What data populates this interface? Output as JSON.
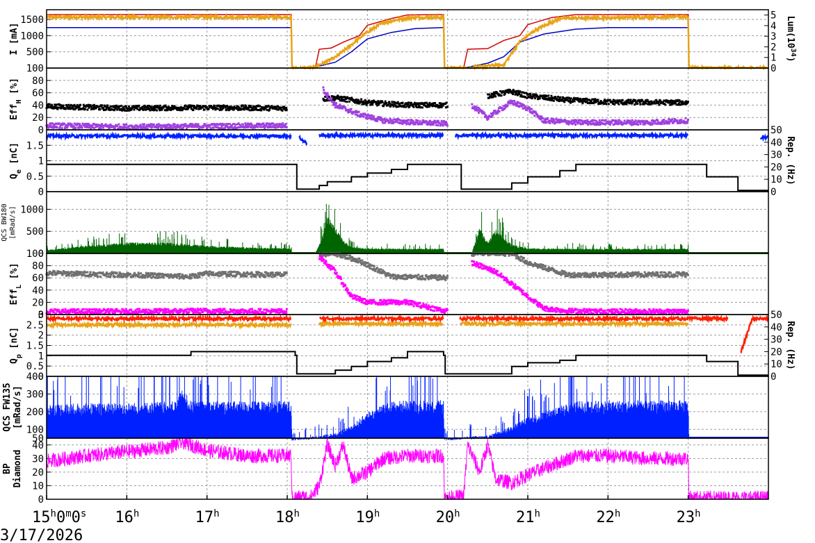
{
  "date": "3/17/2026",
  "colors": {
    "red": "#d40000",
    "orange": "#e8a317",
    "navy": "#0000c0",
    "black": "#000000",
    "purple": "#a040e0",
    "blue": "#0020ff",
    "green": "#006400",
    "gray": "#707070",
    "magenta": "#ff00ff",
    "redorange": "#ff2000",
    "grid": "#9a9a9a"
  },
  "chart_data": [
    {
      "type": "line",
      "ylabel": "I [mA]",
      "ylim": [
        0,
        1800
      ],
      "yticks": [
        "500",
        "1000",
        "1500"
      ],
      "y2label": "Lum(10",
      "y2label_sup": "34",
      "y2label_end": ")",
      "y2lim": [
        0,
        5.5
      ],
      "y2ticks": [
        "0",
        "1",
        "2",
        "3",
        "4",
        "5"
      ],
      "series": [
        {
          "key": "ler",
          "color": "red",
          "x": [
            15.0,
            18.05,
            18.06,
            18.35,
            18.4,
            18.55,
            18.7,
            18.9,
            19.0,
            19.3,
            19.5,
            19.95,
            19.96,
            20.2,
            20.25,
            20.5,
            20.7,
            20.9,
            21.0,
            21.3,
            21.6,
            23.0,
            23.01,
            24.0
          ],
          "y": [
            1650,
            1650,
            0,
            0,
            580,
            620,
            800,
            1000,
            1320,
            1530,
            1640,
            1650,
            0,
            0,
            580,
            600,
            850,
            1000,
            1340,
            1560,
            1650,
            1650,
            0,
            0
          ]
        },
        {
          "key": "her",
          "color": "navy",
          "x": [
            15.0,
            18.05,
            18.06,
            18.3,
            18.6,
            18.8,
            19.0,
            19.3,
            19.6,
            19.95,
            19.96,
            20.2,
            20.5,
            20.7,
            20.9,
            21.2,
            21.6,
            22.0,
            23.0,
            23.01,
            24.0
          ],
          "y": [
            1250,
            1250,
            0,
            0,
            180,
            500,
            900,
            1100,
            1220,
            1250,
            0,
            0,
            150,
            350,
            800,
            1050,
            1200,
            1250,
            1250,
            0,
            0
          ]
        },
        {
          "key": "lum",
          "color": "orange",
          "axis": "y2",
          "noisy": true,
          "x": [
            15.0,
            18.05,
            18.06,
            18.3,
            18.4,
            18.6,
            18.8,
            19.0,
            19.2,
            19.5,
            19.95,
            19.96,
            20.3,
            20.5,
            20.7,
            20.9,
            21.1,
            21.4,
            23.0,
            23.01,
            24.0
          ],
          "y": [
            4.8,
            4.8,
            0,
            0,
            0.3,
            1.0,
            2.2,
            3.4,
            4.3,
            4.75,
            4.8,
            0,
            0,
            0.2,
            0.3,
            2.5,
            3.6,
            4.7,
            4.85,
            0,
            0
          ]
        }
      ]
    },
    {
      "type": "scatter",
      "ylabel": "Eff",
      "ylabel_sub": "H",
      "ylabel_end": " [%]",
      "ylim": [
        0,
        100
      ],
      "yticks": [
        "0",
        "20",
        "40",
        "60",
        "80",
        "100"
      ],
      "series": [
        {
          "key": "effh_black",
          "color": "black",
          "x": [
            15.0,
            16.0,
            17.0,
            18.0,
            18.1,
            18.45,
            18.6,
            19.0,
            19.5,
            20.0,
            20.15,
            20.5,
            20.8,
            21.0,
            21.5,
            22.0,
            23.0
          ],
          "y": [
            38,
            35,
            36,
            35,
            null,
            50,
            52,
            44,
            40,
            40,
            null,
            55,
            62,
            55,
            48,
            45,
            44
          ]
        },
        {
          "key": "effh_purple",
          "color": "purple",
          "x": [
            15.0,
            16.0,
            17.0,
            18.0,
            18.1,
            18.45,
            18.6,
            18.9,
            19.2,
            19.6,
            20.0,
            20.15,
            20.3,
            20.5,
            20.8,
            21.0,
            21.2,
            21.6,
            22.0,
            22.5,
            23.0,
            23.9,
            24.0
          ],
          "y": [
            7,
            5,
            6,
            7,
            null,
            65,
            40,
            25,
            15,
            12,
            10,
            null,
            40,
            20,
            45,
            35,
            15,
            12,
            12,
            12,
            15,
            null,
            3
          ]
        }
      ]
    },
    {
      "type": "line",
      "ylabel": "Q",
      "ylabel_sub": "e",
      "ylabel_end": " [nC]",
      "ylim": [
        0,
        2
      ],
      "yticks": [
        "0",
        "0.5",
        "1",
        "1.5"
      ],
      "y2label": "Rep. (Hz)",
      "y2lim": [
        0,
        50
      ],
      "y2ticks": [
        "0",
        "10",
        "20",
        "30",
        "40",
        "50"
      ],
      "series": [
        {
          "key": "qe",
          "color": "blue",
          "noisy": true,
          "x": [
            15.0,
            18.05,
            18.06,
            18.15,
            18.25,
            18.35,
            18.4,
            19.95,
            19.96,
            20.1,
            20.15,
            23.0,
            23.01,
            23.85,
            23.9,
            24.0
          ],
          "y": [
            1.8,
            1.8,
            null,
            1.75,
            1.55,
            null,
            1.82,
            1.82,
            null,
            1.8,
            1.82,
            1.82,
            null,
            null,
            1.7,
            1.8
          ]
        },
        {
          "key": "rep",
          "color": "black",
          "axis": "y2",
          "step": true,
          "x": [
            15.0,
            18.1,
            18.12,
            18.4,
            18.5,
            18.8,
            19.0,
            19.3,
            19.5,
            20.15,
            20.17,
            20.6,
            20.8,
            21.0,
            21.4,
            21.6,
            23.2,
            23.23,
            23.6,
            23.62,
            24.0
          ],
          "y": [
            22,
            22,
            2,
            5,
            8,
            12,
            15,
            18,
            22,
            22,
            2,
            2,
            7,
            12,
            17,
            22,
            22,
            12,
            12,
            1,
            1
          ]
        }
      ]
    },
    {
      "type": "area",
      "ylabel": "QCS BW180",
      "ylabel2": "[mRad/s]",
      "ylim": [
        0,
        1400
      ],
      "yticks": [
        "0",
        "500",
        "1000"
      ],
      "series": [
        {
          "key": "bw180",
          "color": "green",
          "spiky": true,
          "x": [
            15.0,
            15.5,
            16.0,
            16.5,
            17.0,
            17.5,
            18.0,
            18.05,
            18.06,
            18.35,
            18.45,
            18.5,
            18.6,
            18.7,
            18.8,
            19.0,
            19.5,
            19.95,
            19.96,
            20.3,
            20.4,
            20.5,
            20.6,
            20.8,
            21.0,
            21.5,
            22.0,
            23.0,
            23.01,
            24.0
          ],
          "y": [
            80,
            180,
            250,
            250,
            180,
            140,
            120,
            120,
            0,
            0,
            450,
            900,
            600,
            300,
            150,
            120,
            110,
            110,
            0,
            0,
            600,
            250,
            550,
            200,
            120,
            110,
            110,
            110,
            0,
            0
          ]
        }
      ]
    },
    {
      "type": "scatter",
      "ylabel": "Eff",
      "ylabel_sub": "L",
      "ylabel_end": " [%]",
      "ylim": [
        0,
        100
      ],
      "yticks": [
        "0",
        "20",
        "40",
        "60",
        "80",
        "100"
      ],
      "series": [
        {
          "key": "effl_gray",
          "color": "gray",
          "x": [
            15.0,
            16.0,
            16.8,
            17.0,
            18.0,
            18.1,
            18.4,
            18.6,
            18.9,
            19.3,
            20.0,
            20.15,
            20.3,
            20.8,
            21.0,
            21.5,
            22.0,
            23.0
          ],
          "y": [
            68,
            65,
            62,
            67,
            65,
            null,
            98,
            100,
            88,
            62,
            60,
            null,
            100,
            100,
            85,
            65,
            65,
            66
          ]
        },
        {
          "key": "effl_magenta",
          "color": "magenta",
          "x": [
            15.0,
            16.0,
            17.0,
            18.0,
            18.1,
            18.4,
            18.6,
            18.8,
            19.0,
            19.5,
            20.0,
            20.15,
            20.3,
            20.6,
            20.9,
            21.2,
            21.5,
            22.0,
            23.0
          ],
          "y": [
            5,
            5,
            6,
            5,
            null,
            95,
            70,
            30,
            20,
            20,
            5,
            null,
            85,
            70,
            40,
            10,
            6,
            5,
            5
          ]
        }
      ]
    },
    {
      "type": "line",
      "ylabel": "Q",
      "ylabel_sub": "p",
      "ylabel_end": " [nC]",
      "ylim": [
        0,
        3
      ],
      "yticks": [
        "0",
        "0.5",
        "1",
        "1.5",
        "2",
        "2.5",
        "3"
      ],
      "y2label": "Rep. (Hz)",
      "y2lim": [
        0,
        50
      ],
      "y2ticks": [
        "0",
        "10",
        "20",
        "30",
        "40",
        "50"
      ],
      "series": [
        {
          "key": "qp_orange",
          "color": "orange",
          "noisy": true,
          "x": [
            15.0,
            18.05,
            18.06,
            18.4,
            19.95,
            19.96,
            20.15,
            23.0
          ],
          "y": [
            2.5,
            2.5,
            null,
            2.55,
            2.55,
            null,
            2.55,
            2.55
          ]
        },
        {
          "key": "qp_red",
          "color": "redorange",
          "noisy": true,
          "x": [
            15.0,
            18.05,
            18.06,
            18.2,
            18.35,
            18.4,
            19.95,
            19.96,
            20.15,
            23.0,
            23.2,
            23.5,
            23.6,
            23.65,
            23.8,
            24.0
          ],
          "y": [
            2.8,
            2.8,
            null,
            1.1,
            null,
            2.8,
            2.8,
            null,
            2.8,
            2.8,
            2.8,
            2.8,
            null,
            1.1,
            2.8,
            2.8
          ]
        },
        {
          "key": "rep_p",
          "color": "black",
          "axis": "y2",
          "step": true,
          "x": [
            15.0,
            16.7,
            16.8,
            18.1,
            18.12,
            18.6,
            18.8,
            19.0,
            19.3,
            19.5,
            19.95,
            19.97,
            20.6,
            20.8,
            21.0,
            21.4,
            21.6,
            23.2,
            23.23,
            23.6,
            23.62,
            24.0
          ],
          "y": [
            17,
            17,
            20,
            17,
            2,
            5,
            8,
            12,
            15,
            20,
            17,
            2,
            2,
            8,
            11,
            13,
            17,
            17,
            12,
            12,
            1,
            1
          ]
        }
      ]
    },
    {
      "type": "area",
      "ylabel": "QCS FW135",
      "ylabel2": "[mRad/s]",
      "ylim": [
        50,
        400
      ],
      "yticks": [
        "50",
        "100",
        "200",
        "300",
        "400"
      ],
      "series": [
        {
          "key": "fw135",
          "color": "blue",
          "spiky": true,
          "x": [
            15.0,
            16.0,
            16.6,
            16.7,
            16.8,
            17.0,
            18.0,
            18.05,
            18.06,
            18.3,
            18.6,
            18.8,
            19.0,
            19.3,
            19.5,
            19.95,
            19.96,
            20.2,
            20.5,
            20.8,
            21.0,
            21.3,
            21.6,
            22.0,
            23.0,
            23.01,
            24.0
          ],
          "y": [
            245,
            250,
            260,
            330,
            260,
            260,
            260,
            260,
            50,
            60,
            80,
            120,
            200,
            260,
            265,
            265,
            50,
            60,
            65,
            120,
            170,
            220,
            260,
            265,
            265,
            50,
            50
          ]
        }
      ]
    },
    {
      "type": "line",
      "ylabel": "BP",
      "ylabel2": "Diamond",
      "ylim": [
        0,
        45
      ],
      "yticks": [
        "0",
        "10",
        "20",
        "30",
        "40"
      ],
      "series": [
        {
          "key": "bp",
          "color": "magenta",
          "noisy": true,
          "x": [
            15.0,
            15.5,
            16.0,
            16.5,
            16.7,
            17.0,
            17.5,
            18.0,
            18.05,
            18.06,
            18.3,
            18.4,
            18.5,
            18.6,
            18.7,
            18.8,
            19.0,
            19.2,
            19.5,
            19.95,
            19.96,
            20.2,
            20.25,
            20.4,
            20.5,
            20.6,
            20.8,
            21.0,
            21.3,
            21.6,
            22.0,
            22.5,
            23.0,
            23.01,
            24.0
          ],
          "y": [
            28,
            32,
            35,
            38,
            42,
            36,
            32,
            32,
            32,
            1,
            2,
            10,
            40,
            25,
            40,
            15,
            20,
            30,
            32,
            32,
            1,
            2,
            40,
            20,
            40,
            15,
            12,
            18,
            25,
            32,
            32,
            30,
            30,
            1,
            1
          ]
        }
      ]
    }
  ],
  "x_axis": {
    "xlim": [
      15.0,
      24.0
    ],
    "ticks": [
      {
        "x": 15.0,
        "label": "15",
        "sup1": "h",
        "mid": "0",
        "sup2": "m",
        "mid2": "0",
        "sup3": "s"
      },
      {
        "x": 16.0,
        "label": "16",
        "sup1": "h"
      },
      {
        "x": 17.0,
        "label": "17",
        "sup1": "h"
      },
      {
        "x": 18.0,
        "label": "18",
        "sup1": "h"
      },
      {
        "x": 19.0,
        "label": "19",
        "sup1": "h"
      },
      {
        "x": 20.0,
        "label": "20",
        "sup1": "h"
      },
      {
        "x": 21.0,
        "label": "21",
        "sup1": "h"
      },
      {
        "x": 22.0,
        "label": "22",
        "sup1": "h"
      },
      {
        "x": 23.0,
        "label": "23",
        "sup1": "h"
      }
    ]
  }
}
